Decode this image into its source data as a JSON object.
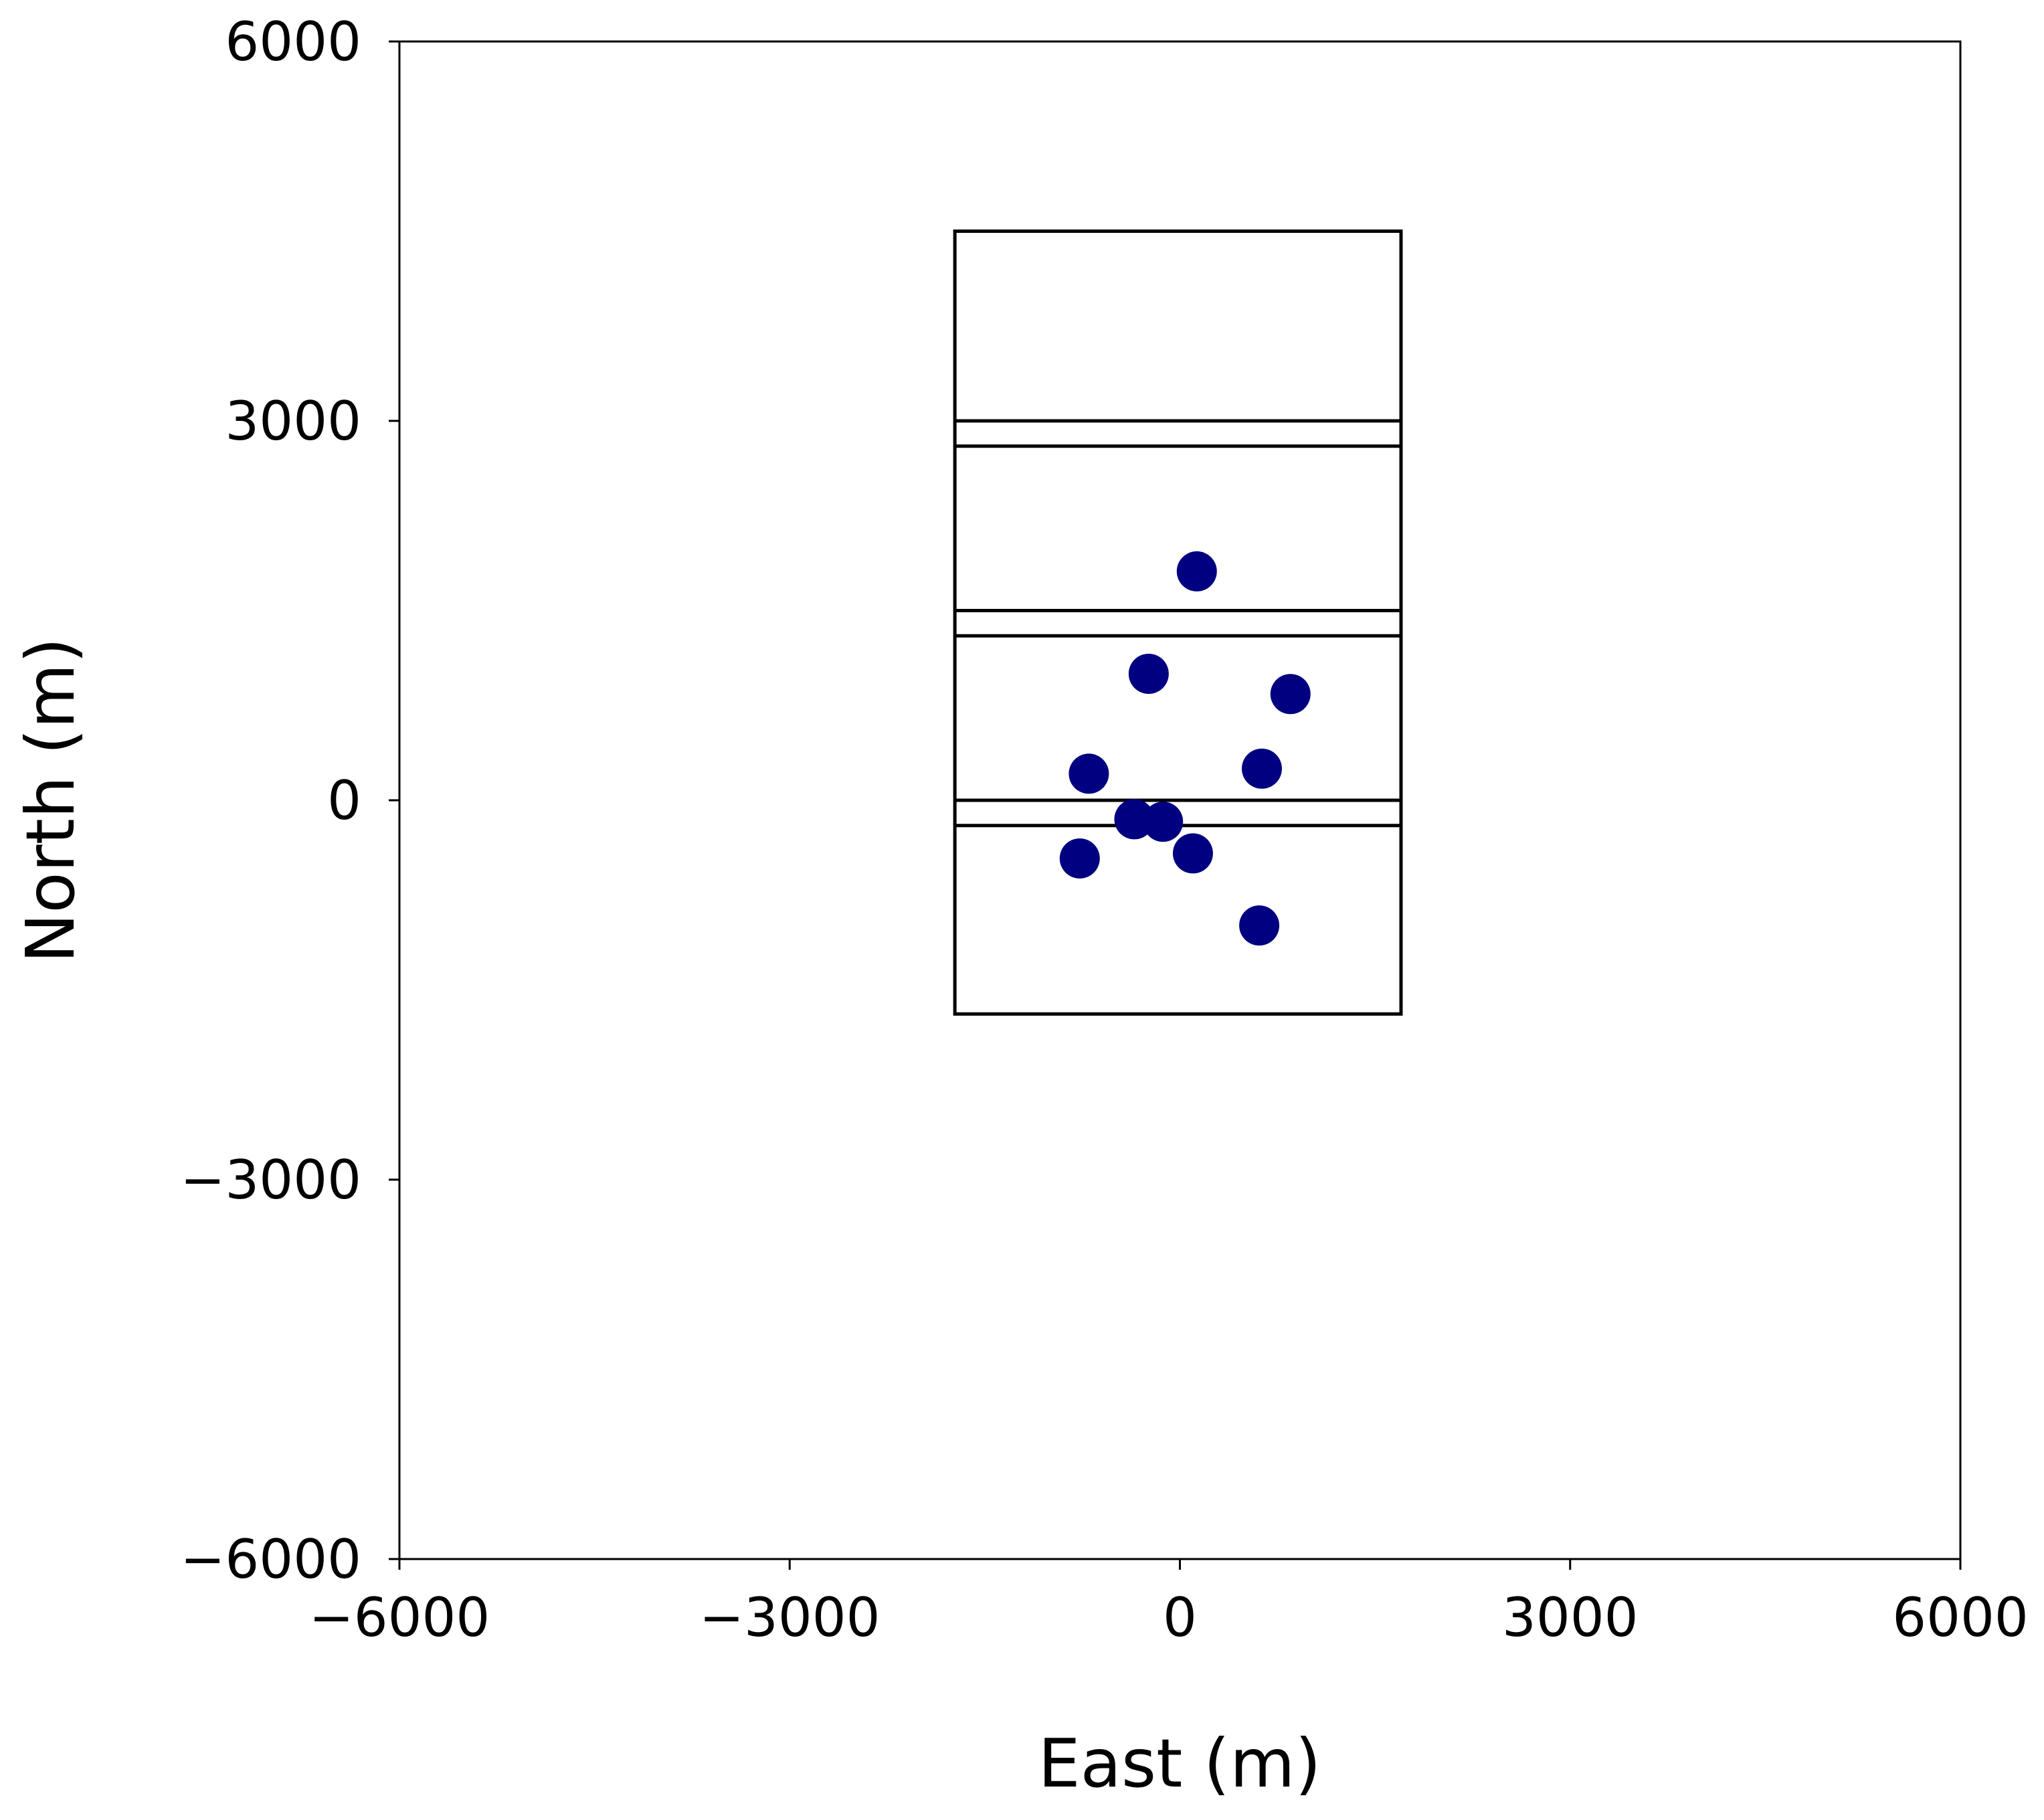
{
  "chart_data": {
    "type": "scatter",
    "title": "",
    "xlabel": "East (m)",
    "ylabel": "North (m)",
    "xlim": [
      -6000,
      6000
    ],
    "ylim": [
      -6000,
      6000
    ],
    "x_ticks": [
      -6000,
      -3000,
      0,
      3000,
      6000
    ],
    "y_ticks": [
      -6000,
      -3000,
      0,
      3000,
      6000
    ],
    "x_tick_labels": [
      "−6000",
      "−3000",
      "0",
      "3000",
      "6000"
    ],
    "y_tick_labels": [
      "−6000",
      "−3000",
      "0",
      "3000",
      "6000"
    ],
    "grid": false,
    "marker_color": "#000080",
    "outline_color": "#000000",
    "points": [
      {
        "x": 130,
        "y": 1810
      },
      {
        "x": -240,
        "y": 1000
      },
      {
        "x": 850,
        "y": 840
      },
      {
        "x": -700,
        "y": 210
      },
      {
        "x": 630,
        "y": 250
      },
      {
        "x": -350,
        "y": -150
      },
      {
        "x": -130,
        "y": -170
      },
      {
        "x": 100,
        "y": -420
      },
      {
        "x": -770,
        "y": -460
      },
      {
        "x": 610,
        "y": -990
      }
    ],
    "outline": {
      "x_min": -1730,
      "x_max": 1700,
      "y_min": -1690,
      "y_max": 4500
    },
    "dividers": [
      {
        "y_low": 2800,
        "y_high": 3000
      },
      {
        "y_low": 1300,
        "y_high": 1500
      },
      {
        "y_low": -200,
        "y_high": 0
      }
    ]
  }
}
